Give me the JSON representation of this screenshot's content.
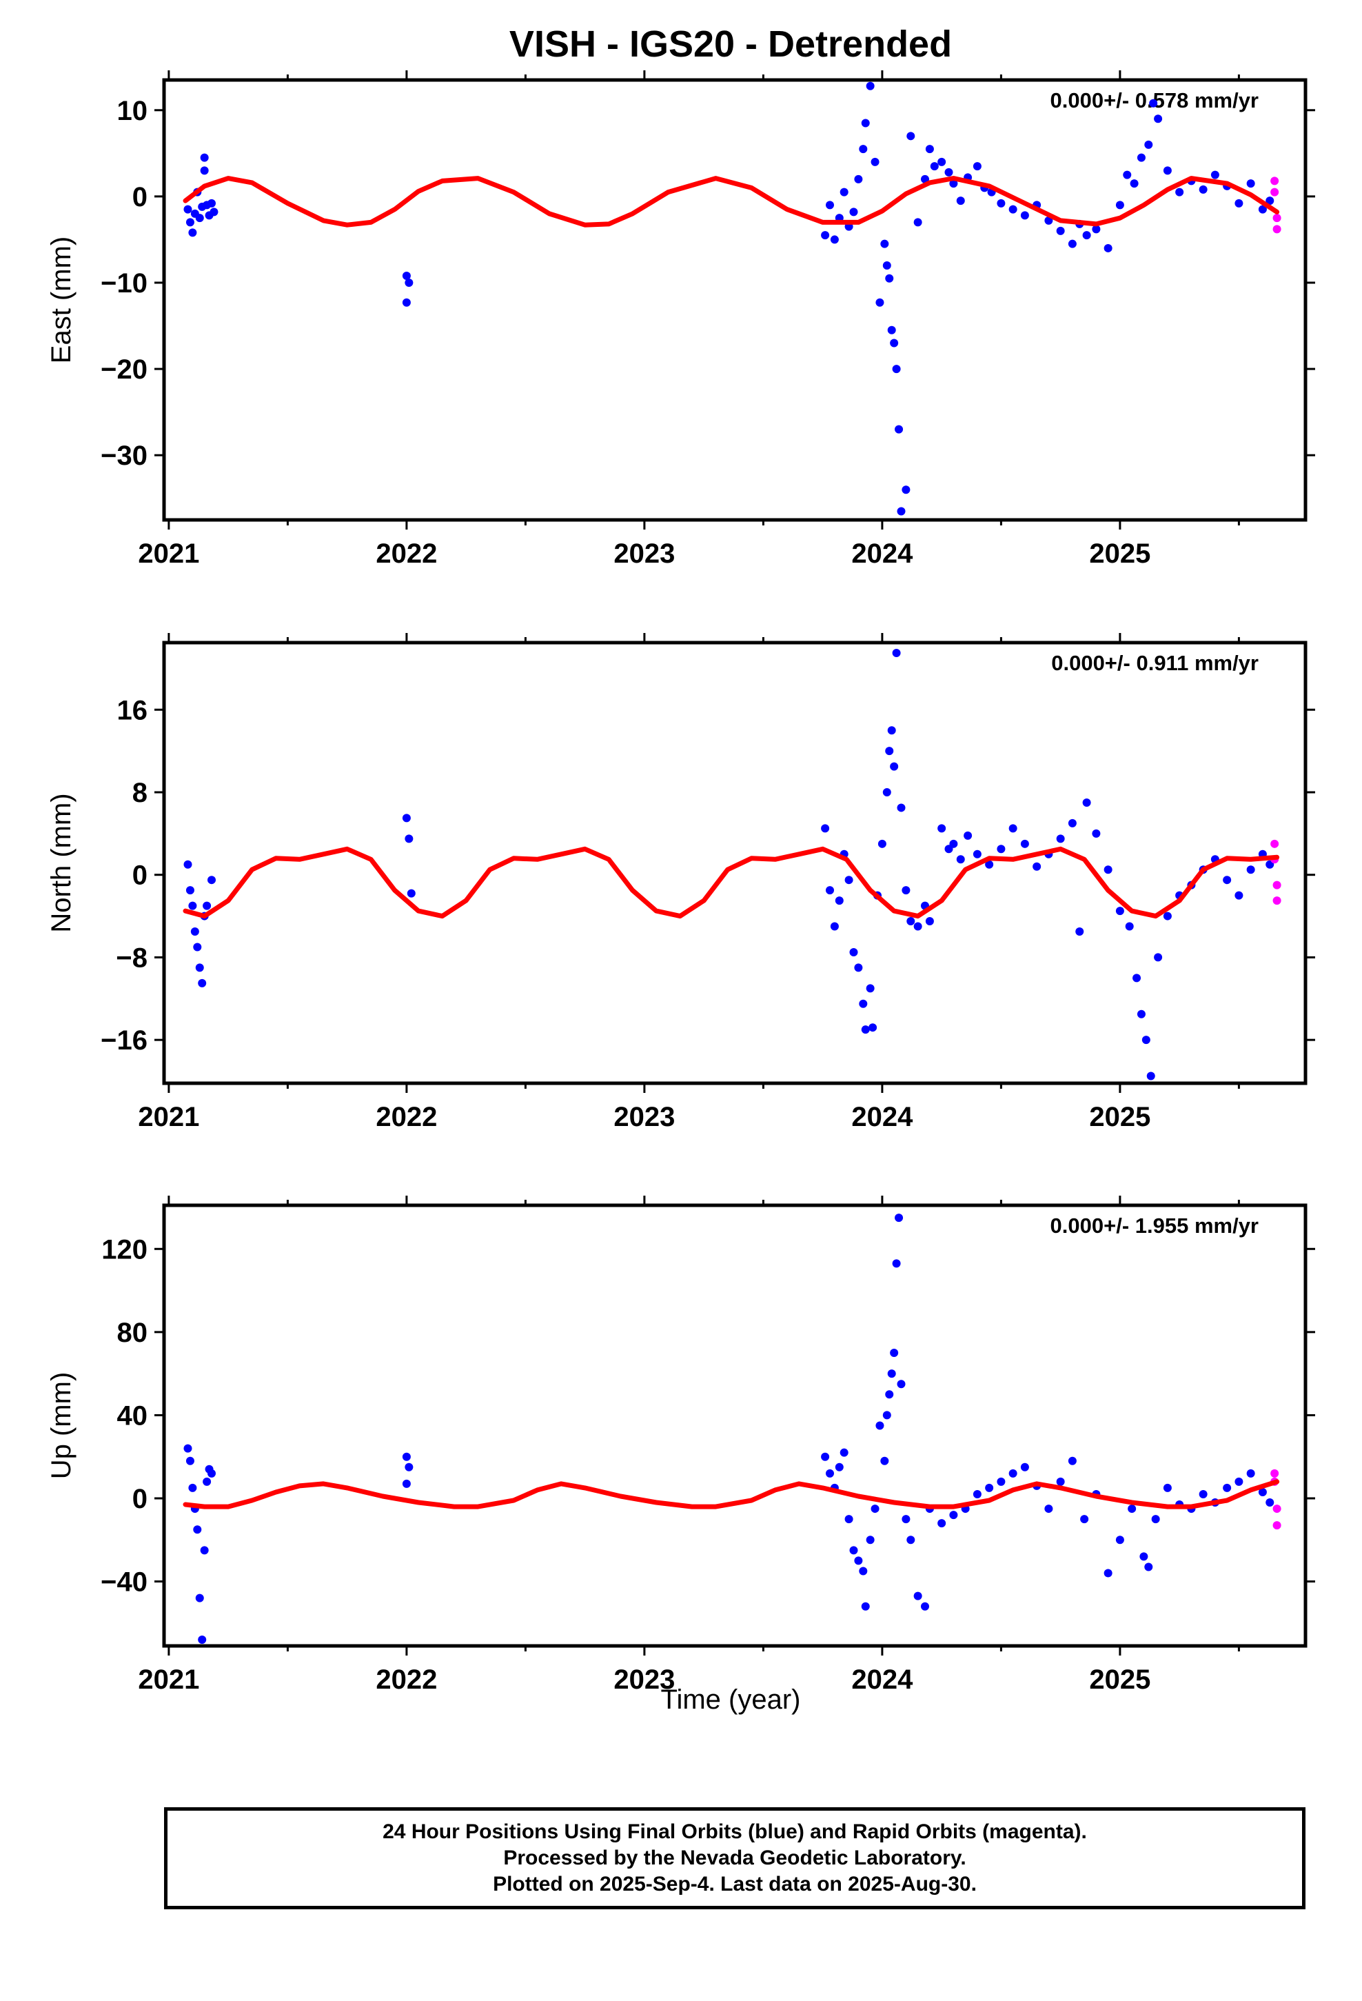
{
  "title": "VISH - IGS20 - Detrended",
  "xlabel": "Time (year)",
  "footer": {
    "line1": "24 Hour Positions Using Final Orbits (blue) and Rapid Orbits (magenta).",
    "line2": "Processed by the Nevada Geodetic Laboratory.",
    "line3": "Plotted on 2025-Sep-4. Last data on 2025-Aug-30."
  },
  "colors": {
    "final": "#0000ff",
    "rapid": "#ff00ff",
    "model": "#ff0000",
    "axis": "#000000"
  },
  "chart_data": [
    {
      "type": "scatter",
      "ylabel": "East (mm)",
      "rate": "0.000+/- 0.578 mm/yr",
      "xlim": [
        2020.98,
        2025.78
      ],
      "ylim": [
        -37.5,
        13.5
      ],
      "xticks": [
        2021,
        2022,
        2023,
        2024,
        2025
      ],
      "yticks": [
        10,
        0,
        -10,
        -20,
        -30
      ],
      "model": {
        "name": "seasonal model",
        "x": [
          2021.07,
          2021.15,
          2021.25,
          2021.35,
          2021.5,
          2021.65,
          2021.75,
          2021.85,
          2021.95,
          2022.05,
          2022.15,
          2022.3,
          2022.45,
          2022.6,
          2022.75,
          2022.85,
          2022.95,
          2023.1,
          2023.3,
          2023.45,
          2023.6,
          2023.75,
          2023.9,
          2024.0,
          2024.1,
          2024.2,
          2024.3,
          2024.45,
          2024.6,
          2024.75,
          2024.9,
          2025.0,
          2025.1,
          2025.2,
          2025.3,
          2025.45,
          2025.55,
          2025.66
        ],
        "y": [
          -0.5,
          1.2,
          2.1,
          1.6,
          -0.8,
          -2.8,
          -3.3,
          -3.0,
          -1.5,
          0.6,
          1.8,
          2.1,
          0.5,
          -2.0,
          -3.3,
          -3.2,
          -2.0,
          0.5,
          2.1,
          1.0,
          -1.5,
          -3.0,
          -3.0,
          -1.7,
          0.3,
          1.6,
          2.1,
          1.2,
          -0.8,
          -2.8,
          -3.2,
          -2.5,
          -1.0,
          0.8,
          2.1,
          1.5,
          0.2,
          -1.8
        ]
      },
      "final": {
        "x": [
          2021.08,
          2021.09,
          2021.1,
          2021.11,
          2021.12,
          2021.13,
          2021.14,
          2021.15,
          2021.15,
          2021.16,
          2021.17,
          2021.18,
          2021.19,
          2022.0,
          2022.01,
          2022.0,
          2023.76,
          2023.78,
          2023.8,
          2023.82,
          2023.84,
          2023.86,
          2023.88,
          2023.9,
          2023.92,
          2023.93,
          2023.95,
          2023.97,
          2023.99,
          2024.01,
          2024.02,
          2024.03,
          2024.04,
          2024.05,
          2024.06,
          2024.07,
          2024.08,
          2024.1,
          2024.12,
          2024.15,
          2024.18,
          2024.2,
          2024.22,
          2024.25,
          2024.28,
          2024.3,
          2024.33,
          2024.36,
          2024.4,
          2024.43,
          2024.46,
          2024.5,
          2024.55,
          2024.6,
          2024.65,
          2024.7,
          2024.75,
          2024.8,
          2024.83,
          2024.86,
          2024.9,
          2024.95,
          2025.0,
          2025.03,
          2025.06,
          2025.09,
          2025.12,
          2025.14,
          2025.16,
          2025.2,
          2025.25,
          2025.3,
          2025.35,
          2025.4,
          2025.45,
          2025.5,
          2025.55,
          2025.6,
          2025.63
        ],
        "y": [
          -1.5,
          -3.0,
          -4.2,
          -2.0,
          0.5,
          -2.5,
          -1.2,
          4.5,
          3.0,
          -1.0,
          -2.2,
          -0.8,
          -1.8,
          -9.2,
          -10.0,
          -12.3,
          -4.5,
          -1.0,
          -5.0,
          -2.5,
          0.5,
          -3.5,
          -1.8,
          2.0,
          5.5,
          8.5,
          12.8,
          4.0,
          -12.3,
          -5.5,
          -8.0,
          -9.5,
          -15.5,
          -17.0,
          -20.0,
          -27.0,
          -36.5,
          -34.0,
          7.0,
          -3.0,
          2.0,
          5.5,
          3.5,
          4.0,
          2.8,
          1.5,
          -0.5,
          2.2,
          3.5,
          1.0,
          0.5,
          -0.8,
          -1.5,
          -2.2,
          -1.0,
          -2.8,
          -4.0,
          -5.5,
          -3.2,
          -4.5,
          -3.8,
          -6.0,
          -1.0,
          2.5,
          1.5,
          4.5,
          6.0,
          10.8,
          9.0,
          3.0,
          0.5,
          1.8,
          0.8,
          2.5,
          1.2,
          -0.8,
          1.5,
          -1.5,
          -0.5
        ]
      },
      "rapid": {
        "x": [
          2025.65,
          2025.65,
          2025.66,
          2025.66
        ],
        "y": [
          1.8,
          0.5,
          -2.5,
          -3.8
        ]
      }
    },
    {
      "type": "scatter",
      "ylabel": "North (mm)",
      "rate": "0.000+/- 0.911 mm/yr",
      "xlim": [
        2020.98,
        2025.78
      ],
      "ylim": [
        -20.2,
        22.5
      ],
      "xticks": [
        2021,
        2022,
        2023,
        2024,
        2025
      ],
      "yticks": [
        16,
        8,
        0,
        -8,
        -16
      ],
      "model": {
        "name": "seasonal model",
        "x": [
          2021.07,
          2021.15,
          2021.25,
          2021.35,
          2021.45,
          2021.55,
          2021.65,
          2021.75,
          2021.85,
          2021.95,
          2022.05,
          2022.15,
          2022.25,
          2022.35,
          2022.45,
          2022.55,
          2022.65,
          2022.75,
          2022.85,
          2022.95,
          2023.05,
          2023.15,
          2023.25,
          2023.35,
          2023.45,
          2023.55,
          2023.65,
          2023.75,
          2023.85,
          2023.95,
          2024.05,
          2024.15,
          2024.25,
          2024.35,
          2024.45,
          2024.55,
          2024.65,
          2024.75,
          2024.85,
          2024.95,
          2025.05,
          2025.15,
          2025.25,
          2025.35,
          2025.45,
          2025.55,
          2025.66
        ],
        "y": [
          -3.5,
          -4.0,
          -2.5,
          0.5,
          1.6,
          1.5,
          2.0,
          2.5,
          1.5,
          -1.5,
          -3.5,
          -4.0,
          -2.5,
          0.5,
          1.6,
          1.5,
          2.0,
          2.5,
          1.5,
          -1.5,
          -3.5,
          -4.0,
          -2.5,
          0.5,
          1.6,
          1.5,
          2.0,
          2.5,
          1.5,
          -1.5,
          -3.5,
          -4.0,
          -2.5,
          0.5,
          1.6,
          1.5,
          2.0,
          2.5,
          1.5,
          -1.5,
          -3.5,
          -4.0,
          -2.5,
          0.5,
          1.6,
          1.5,
          1.7
        ]
      },
      "final": {
        "x": [
          2021.08,
          2021.09,
          2021.1,
          2021.11,
          2021.12,
          2021.13,
          2021.14,
          2021.15,
          2021.16,
          2021.18,
          2022.0,
          2022.01,
          2022.02,
          2023.76,
          2023.78,
          2023.8,
          2023.82,
          2023.84,
          2023.86,
          2023.88,
          2023.9,
          2023.92,
          2023.93,
          2023.95,
          2023.96,
          2023.98,
          2024.0,
          2024.02,
          2024.03,
          2024.04,
          2024.05,
          2024.06,
          2024.08,
          2024.1,
          2024.12,
          2024.15,
          2024.18,
          2024.2,
          2024.25,
          2024.28,
          2024.3,
          2024.33,
          2024.36,
          2024.4,
          2024.45,
          2024.5,
          2024.55,
          2024.6,
          2024.65,
          2024.7,
          2024.75,
          2024.8,
          2024.83,
          2024.86,
          2024.9,
          2024.95,
          2025.0,
          2025.04,
          2025.07,
          2025.09,
          2025.11,
          2025.13,
          2025.16,
          2025.2,
          2025.25,
          2025.3,
          2025.35,
          2025.4,
          2025.45,
          2025.5,
          2025.55,
          2025.6,
          2025.63
        ],
        "y": [
          1.0,
          -1.5,
          -3.0,
          -5.5,
          -7.0,
          -9.0,
          -10.5,
          -4.0,
          -3.0,
          -0.5,
          5.5,
          3.5,
          -1.8,
          4.5,
          -1.5,
          -5.0,
          -2.5,
          2.0,
          -0.5,
          -7.5,
          -9.0,
          -12.5,
          -15.0,
          -11.0,
          -14.8,
          -2.0,
          3.0,
          8.0,
          12.0,
          14.0,
          10.5,
          21.5,
          6.5,
          -1.5,
          -4.5,
          -5.0,
          -3.0,
          -4.5,
          4.5,
          2.5,
          3.0,
          1.5,
          3.8,
          2.0,
          1.0,
          2.5,
          4.5,
          3.0,
          0.8,
          2.0,
          3.5,
          5.0,
          -5.5,
          7.0,
          4.0,
          0.5,
          -3.5,
          -5.0,
          -10.0,
          -13.5,
          -16.0,
          -19.5,
          -8.0,
          -4.0,
          -2.0,
          -1.0,
          0.5,
          1.5,
          -0.5,
          -2.0,
          0.5,
          2.0,
          1.0
        ]
      },
      "rapid": {
        "x": [
          2025.65,
          2025.65,
          2025.66,
          2025.66
        ],
        "y": [
          3.0,
          1.5,
          -1.0,
          -2.5
        ]
      }
    },
    {
      "type": "scatter",
      "ylabel": "Up (mm)",
      "rate": "0.000+/- 1.955 mm/yr",
      "xlim": [
        2020.98,
        2025.78
      ],
      "ylim": [
        -71,
        141
      ],
      "xticks": [
        2021,
        2022,
        2023,
        2024,
        2025
      ],
      "yticks": [
        120,
        80,
        40,
        0,
        -40
      ],
      "model": {
        "name": "seasonal model",
        "x": [
          2021.07,
          2021.15,
          2021.25,
          2021.35,
          2021.45,
          2021.55,
          2021.65,
          2021.75,
          2021.9,
          2022.05,
          2022.2,
          2022.3,
          2022.45,
          2022.55,
          2022.65,
          2022.75,
          2022.9,
          2023.05,
          2023.2,
          2023.3,
          2023.45,
          2023.55,
          2023.65,
          2023.75,
          2023.9,
          2024.05,
          2024.2,
          2024.3,
          2024.45,
          2024.55,
          2024.65,
          2024.75,
          2024.9,
          2025.05,
          2025.2,
          2025.3,
          2025.45,
          2025.55,
          2025.66
        ],
        "y": [
          -3,
          -4,
          -4,
          -1,
          3,
          6,
          7,
          5,
          1,
          -2,
          -4,
          -4,
          -1,
          4,
          7,
          5,
          1,
          -2,
          -4,
          -4,
          -1,
          4,
          7,
          5,
          1,
          -2,
          -4,
          -4,
          -1,
          4,
          7,
          5,
          1,
          -2,
          -4,
          -4,
          -1,
          4,
          8
        ]
      },
      "final": {
        "x": [
          2021.08,
          2021.09,
          2021.1,
          2021.11,
          2021.12,
          2021.13,
          2021.14,
          2021.15,
          2021.16,
          2021.17,
          2021.18,
          2022.0,
          2022.01,
          2022.0,
          2023.76,
          2023.78,
          2023.8,
          2023.82,
          2023.84,
          2023.86,
          2023.88,
          2023.9,
          2023.92,
          2023.93,
          2023.95,
          2023.97,
          2023.99,
          2024.01,
          2024.02,
          2024.03,
          2024.04,
          2024.05,
          2024.06,
          2024.07,
          2024.08,
          2024.1,
          2024.12,
          2024.15,
          2024.18,
          2024.2,
          2024.25,
          2024.3,
          2024.35,
          2024.4,
          2024.45,
          2024.5,
          2024.55,
          2024.6,
          2024.65,
          2024.7,
          2024.75,
          2024.8,
          2024.85,
          2024.9,
          2024.95,
          2025.0,
          2025.05,
          2025.1,
          2025.12,
          2025.15,
          2025.2,
          2025.25,
          2025.3,
          2025.35,
          2025.4,
          2025.45,
          2025.5,
          2025.55,
          2025.6,
          2025.63
        ],
        "y": [
          24,
          18,
          5,
          -5,
          -15,
          -48,
          -68,
          -25,
          8,
          14,
          12,
          20,
          15,
          7,
          20,
          12,
          5,
          15,
          22,
          -10,
          -25,
          -30,
          -35,
          -52,
          -20,
          -5,
          35,
          18,
          40,
          50,
          60,
          70,
          113,
          135,
          55,
          -10,
          -20,
          -47,
          -52,
          -5,
          -12,
          -8,
          -5,
          2,
          5,
          8,
          12,
          15,
          6,
          -5,
          8,
          18,
          -10,
          2,
          -36,
          -20,
          -5,
          -28,
          -33,
          -10,
          5,
          -3,
          -5,
          2,
          -2,
          5,
          8,
          12,
          3,
          -2
        ]
      },
      "rapid": {
        "x": [
          2025.65,
          2025.65,
          2025.66,
          2025.66
        ],
        "y": [
          12,
          8,
          -5,
          -13
        ]
      }
    }
  ]
}
